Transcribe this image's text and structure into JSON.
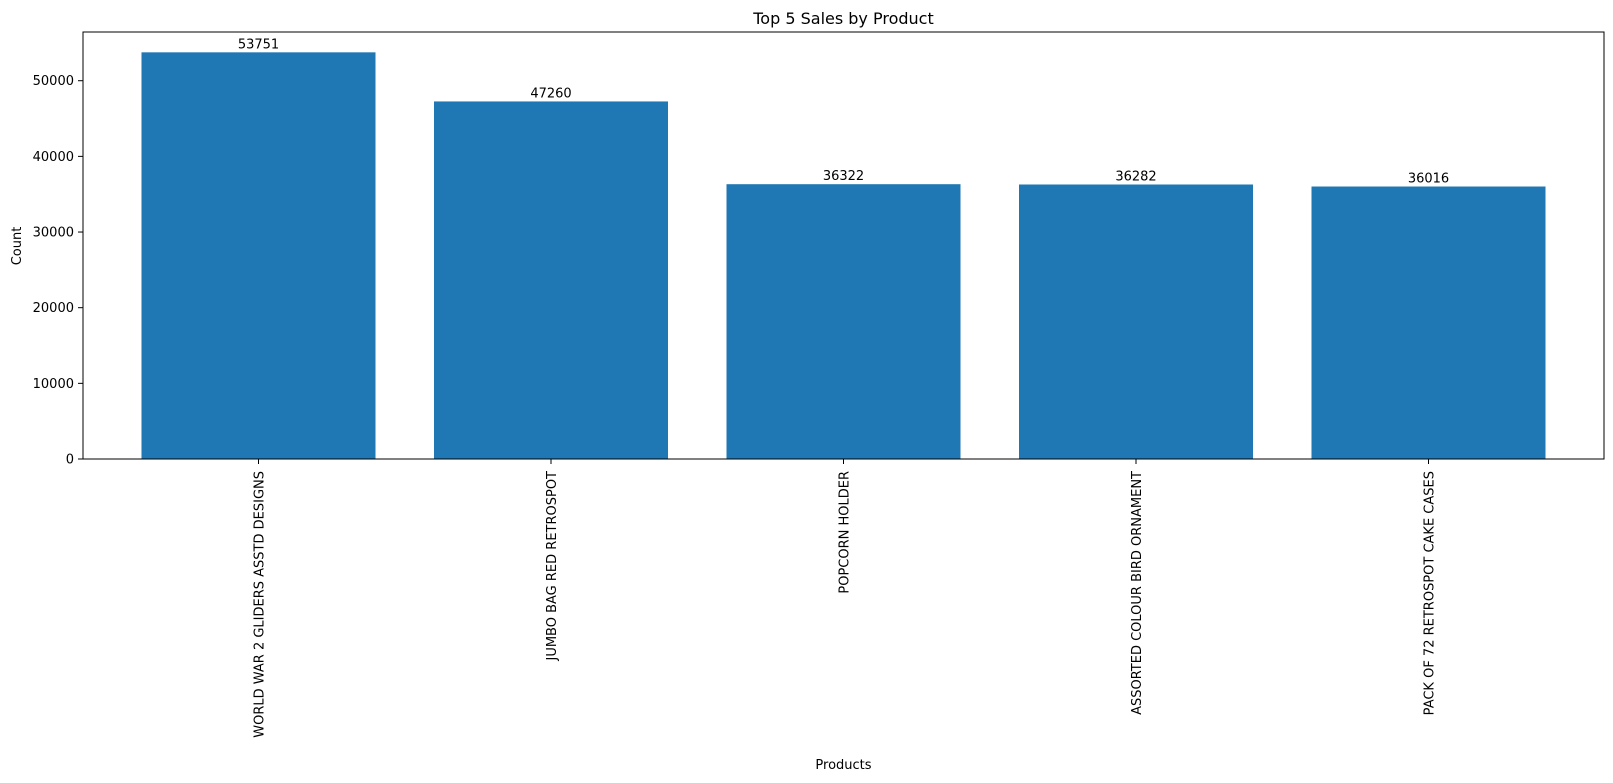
{
  "chart_data": {
    "type": "bar",
    "title": "Top 5 Sales by Product",
    "xlabel": "Products",
    "ylabel": "Count",
    "categories": [
      "WORLD WAR 2 GLIDERS ASSTD DESIGNS",
      "JUMBO BAG RED RETROSPOT",
      "POPCORN HOLDER",
      "ASSORTED COLOUR BIRD ORNAMENT",
      "PACK OF 72 RETROSPOT CAKE CASES"
    ],
    "values": [
      53751,
      47260,
      36322,
      36282,
      36016
    ],
    "data_labels": [
      "53751",
      "47260",
      "36322",
      "36282",
      "36016"
    ],
    "yticks": [
      0,
      10000,
      20000,
      30000,
      40000,
      50000
    ],
    "ytick_labels": [
      "0",
      "10000",
      "20000",
      "30000",
      "40000",
      "50000"
    ],
    "ylim": [
      0,
      56439
    ],
    "grid": false,
    "legend": "none",
    "bar_color": "#1f77b4"
  }
}
